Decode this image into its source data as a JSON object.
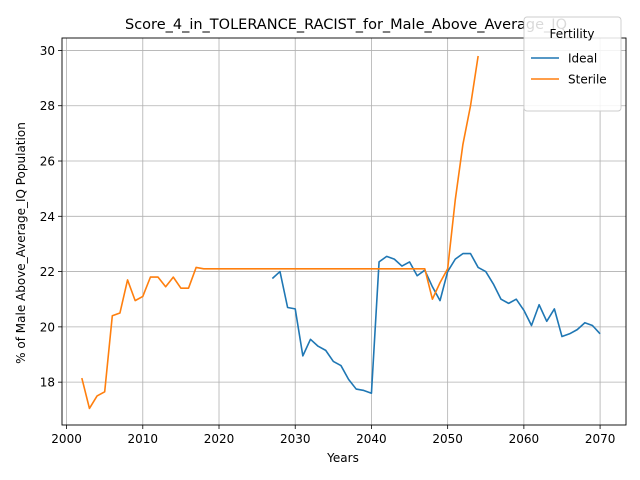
{
  "chart_data": {
    "type": "line",
    "title": "Score_4_in_TOLERANCE_RACIST_for_Male_Above_Average_IQ",
    "xlabel": "Years",
    "ylabel": "% of Male Above_Average_IQ Population",
    "xlim": [
      1999.4,
      2073.4
    ],
    "ylim": [
      16.45,
      30.45
    ],
    "xticks": [
      2000,
      2010,
      2020,
      2030,
      2040,
      2050,
      2060,
      2070
    ],
    "yticks": [
      18,
      20,
      22,
      24,
      26,
      28,
      30
    ],
    "grid": true,
    "legend": {
      "title": "Fertility",
      "placement": "top-right"
    },
    "series": [
      {
        "name": "Ideal",
        "color": "#1f77b4",
        "x": [
          2027,
          2028,
          2029,
          2030,
          2031,
          2032,
          2033,
          2034,
          2035,
          2036,
          2037,
          2038,
          2039,
          2040,
          2041,
          2042,
          2043,
          2044,
          2045,
          2046,
          2047,
          2048,
          2049,
          2050,
          2051,
          2052,
          2053,
          2054,
          2055,
          2056,
          2057,
          2058,
          2059,
          2060,
          2061,
          2062,
          2063,
          2064,
          2065,
          2066,
          2067,
          2068,
          2069,
          2070
        ],
        "values": [
          21.75,
          22.0,
          20.7,
          20.65,
          18.95,
          19.55,
          19.3,
          19.15,
          18.75,
          18.6,
          18.1,
          17.75,
          17.7,
          17.6,
          22.35,
          22.55,
          22.45,
          22.2,
          22.35,
          21.85,
          22.05,
          21.45,
          20.95,
          22.0,
          22.45,
          22.65,
          22.65,
          22.15,
          22.0,
          21.55,
          21.0,
          20.85,
          21.0,
          20.6,
          20.05,
          20.8,
          20.2,
          20.65,
          19.65,
          19.75,
          19.9,
          20.15,
          20.05,
          19.75
        ]
      },
      {
        "name": "Sterile",
        "color": "#ff7f0e",
        "x": [
          2002,
          2003,
          2004,
          2005,
          2006,
          2007,
          2008,
          2009,
          2010,
          2011,
          2012,
          2013,
          2014,
          2015,
          2016,
          2017,
          2018,
          2019,
          2020,
          2021,
          2022,
          2023,
          2024,
          2025,
          2026,
          2027,
          2028,
          2029,
          2030,
          2031,
          2032,
          2033,
          2034,
          2035,
          2036,
          2037,
          2038,
          2039,
          2040,
          2041,
          2042,
          2043,
          2044,
          2045,
          2046,
          2047,
          2048,
          2049,
          2050,
          2051,
          2052,
          2053,
          2054
        ],
        "values": [
          18.15,
          17.05,
          17.5,
          17.65,
          20.4,
          20.5,
          21.7,
          20.95,
          21.1,
          21.8,
          21.8,
          21.45,
          21.8,
          21.4,
          21.4,
          22.15,
          22.1,
          22.1,
          22.1,
          22.1,
          22.1,
          22.1,
          22.1,
          22.1,
          22.1,
          22.1,
          22.1,
          22.1,
          22.1,
          22.1,
          22.1,
          22.1,
          22.1,
          22.1,
          22.1,
          22.1,
          22.1,
          22.1,
          22.1,
          22.1,
          22.1,
          22.1,
          22.1,
          22.1,
          22.1,
          22.1,
          21.0,
          21.6,
          22.1,
          24.6,
          26.6,
          28.0,
          29.8
        ]
      }
    ]
  }
}
